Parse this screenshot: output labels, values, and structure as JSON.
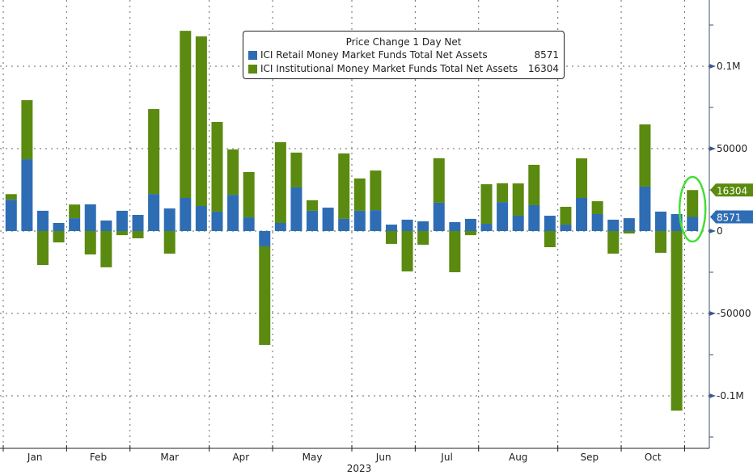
{
  "chart_data": {
    "type": "bar",
    "stacked": true,
    "title": "Price Change 1 Day Net",
    "xlabel": "2023",
    "ylabel": "",
    "ylim": [
      -125000,
      140000
    ],
    "y_ticks": [
      {
        "value": 100000,
        "label": "0.1M"
      },
      {
        "value": 50000,
        "label": "50000"
      },
      {
        "value": 0,
        "label": "0"
      },
      {
        "value": -50000,
        "label": "-50000"
      },
      {
        "value": -100000,
        "label": "-0.1M"
      }
    ],
    "months": [
      {
        "label": "Jan",
        "start_bar": 0,
        "end_bar": 4
      },
      {
        "label": "Feb",
        "start_bar": 4,
        "end_bar": 8
      },
      {
        "label": "Mar",
        "start_bar": 8,
        "end_bar": 13
      },
      {
        "label": "Apr",
        "start_bar": 13,
        "end_bar": 17
      },
      {
        "label": "May",
        "start_bar": 17,
        "end_bar": 22
      },
      {
        "label": "Jun",
        "start_bar": 22,
        "end_bar": 26
      },
      {
        "label": "Jul",
        "start_bar": 26,
        "end_bar": 30
      },
      {
        "label": "Aug",
        "start_bar": 30,
        "end_bar": 35
      },
      {
        "label": "Sep",
        "start_bar": 35,
        "end_bar": 39
      },
      {
        "label": "Oct",
        "start_bar": 39,
        "end_bar": 43
      }
    ],
    "grid": true,
    "legend_position": "top-center",
    "series": [
      {
        "name": "ICI Retail Money Market Funds Total Net Assets",
        "last_value": "8571",
        "color": "#2e6db4",
        "values": [
          19000,
          43600,
          12300,
          4900,
          7800,
          16200,
          6400,
          12300,
          9800,
          22500,
          13700,
          20100,
          15200,
          11800,
          22000,
          8300,
          -9300,
          4900,
          26500,
          12300,
          14200,
          7400,
          12300,
          12700,
          3900,
          6900,
          5900,
          17200,
          5400,
          7400,
          4400,
          17600,
          9300,
          15700,
          9300,
          3900,
          20100,
          10300,
          6900,
          7800,
          27000,
          11800,
          10300,
          8571
        ]
      },
      {
        "name": "ICI Institutional Money Market Funds Total Net Assets",
        "last_value": "16304",
        "color": "#5a8a0f",
        "values": [
          3400,
          35800,
          -20600,
          -6900,
          8300,
          -14200,
          -22000,
          -2500,
          -4400,
          51500,
          -13700,
          101400,
          102900,
          54400,
          27500,
          27500,
          -59800,
          49000,
          21100,
          6400,
          0,
          39700,
          19600,
          24000,
          -7800,
          -24500,
          -8300,
          27000,
          -25000,
          -2500,
          24000,
          11400,
          19600,
          24500,
          -9800,
          10800,
          24000,
          7800,
          -13700,
          -1500,
          37700,
          -13200,
          -109000,
          16304
        ]
      }
    ],
    "annotations": [
      {
        "type": "highlight-ellipse",
        "bar_index": 43,
        "color": "#44dd33"
      }
    ]
  }
}
